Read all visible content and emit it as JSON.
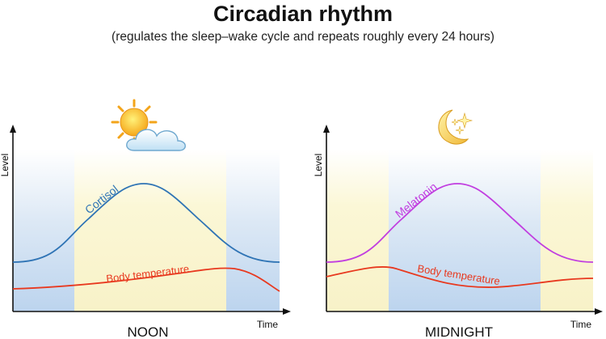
{
  "header": {
    "title": "Circadian rhythm",
    "subtitle": "(regulates the sleep–wake cycle and repeats roughly every 24 hours)"
  },
  "colors": {
    "day_band": "#fbf7d6",
    "night_band": "#bcd4ee",
    "cortisol": "#2f74b5",
    "melatonin": "#c13ee0",
    "body_temperature": "#e8391f",
    "axis": "#111111"
  },
  "panels": [
    {
      "label": "NOON",
      "icon": "sun-behind-cloud-icon",
      "y_axis_label": "Level",
      "x_axis_label": "Time",
      "curve_labels": {
        "primary": "Cortisol",
        "secondary": "Body temperature"
      }
    },
    {
      "label": "MIDNIGHT",
      "icon": "crescent-moon-stars-icon",
      "y_axis_label": "Level",
      "x_axis_label": "Time",
      "curve_labels": {
        "primary": "Melatonin",
        "secondary": "Body temperature"
      }
    }
  ]
}
